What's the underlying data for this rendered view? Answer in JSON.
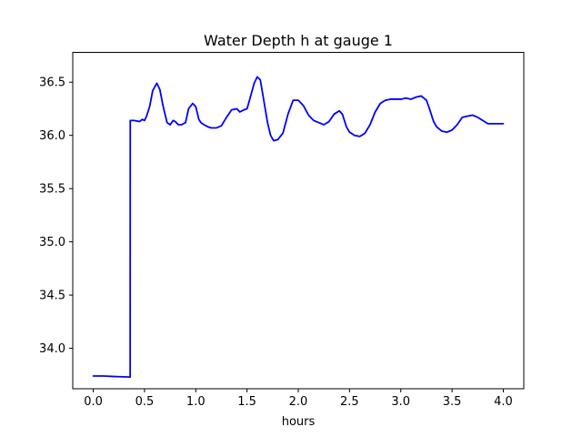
{
  "chart_data": {
    "type": "line",
    "title": "Water Depth h at gauge 1",
    "xlabel": "hours",
    "ylabel": "",
    "xlim": [
      -0.2,
      4.2
    ],
    "ylim": [
      33.62,
      36.78
    ],
    "grid": false,
    "x_ticks": [
      0.0,
      0.5,
      1.0,
      1.5,
      2.0,
      2.5,
      3.0,
      3.5,
      4.0
    ],
    "x_tick_labels": [
      "0.0",
      "0.5",
      "1.0",
      "1.5",
      "2.0",
      "2.5",
      "3.0",
      "3.5",
      "4.0"
    ],
    "y_ticks": [
      34.0,
      34.5,
      35.0,
      35.5,
      36.0,
      36.5
    ],
    "y_tick_labels": [
      "34.0",
      "34.5",
      "35.0",
      "35.5",
      "36.0",
      "36.5"
    ],
    "series": [
      {
        "color": "#0000ff",
        "x": [
          0.0,
          0.1,
          0.2,
          0.36,
          0.361,
          0.4,
          0.45,
          0.48,
          0.5,
          0.52,
          0.55,
          0.58,
          0.62,
          0.65,
          0.68,
          0.72,
          0.75,
          0.78,
          0.8,
          0.83,
          0.86,
          0.9,
          0.93,
          0.97,
          1.0,
          1.03,
          1.05,
          1.08,
          1.12,
          1.15,
          1.2,
          1.25,
          1.3,
          1.35,
          1.4,
          1.43,
          1.47,
          1.5,
          1.53,
          1.57,
          1.6,
          1.63,
          1.66,
          1.7,
          1.73,
          1.76,
          1.8,
          1.85,
          1.9,
          1.95,
          2.0,
          2.05,
          2.1,
          2.15,
          2.2,
          2.25,
          2.3,
          2.35,
          2.4,
          2.43,
          2.47,
          2.5,
          2.55,
          2.6,
          2.65,
          2.7,
          2.75,
          2.8,
          2.85,
          2.9,
          2.95,
          3.0,
          3.05,
          3.1,
          3.15,
          3.2,
          3.25,
          3.28,
          3.32,
          3.35,
          3.4,
          3.45,
          3.5,
          3.55,
          3.6,
          3.65,
          3.7,
          3.75,
          3.8,
          3.85,
          3.9,
          3.95,
          4.0
        ],
        "y": [
          33.74,
          33.74,
          33.735,
          33.73,
          36.14,
          36.14,
          36.13,
          36.15,
          36.14,
          36.18,
          36.27,
          36.42,
          36.49,
          36.43,
          36.28,
          36.12,
          36.1,
          36.14,
          36.13,
          36.1,
          36.1,
          36.12,
          36.25,
          36.3,
          36.27,
          36.15,
          36.12,
          36.1,
          36.08,
          36.07,
          36.07,
          36.09,
          36.17,
          36.24,
          36.25,
          36.22,
          36.24,
          36.25,
          36.35,
          36.49,
          36.55,
          36.52,
          36.35,
          36.12,
          36.0,
          35.95,
          35.96,
          36.02,
          36.2,
          36.33,
          36.33,
          36.28,
          36.19,
          36.14,
          36.12,
          36.1,
          36.13,
          36.2,
          36.23,
          36.2,
          36.08,
          36.03,
          36.0,
          35.99,
          36.02,
          36.1,
          36.22,
          36.3,
          36.33,
          36.34,
          36.34,
          36.34,
          36.35,
          36.34,
          36.36,
          36.37,
          36.33,
          36.25,
          36.13,
          36.08,
          36.04,
          36.03,
          36.05,
          36.1,
          36.17,
          36.18,
          36.19,
          36.17,
          36.14,
          36.11,
          36.11,
          36.11,
          36.11
        ]
      }
    ]
  }
}
